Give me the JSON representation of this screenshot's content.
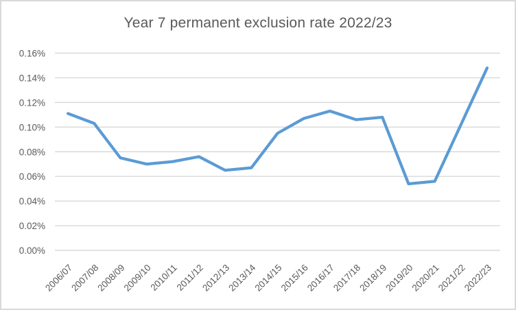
{
  "window": {
    "kind": "embedded-spreadsheet-chart"
  },
  "colors": {
    "line": "#5B9BD5",
    "gridline": "#D9D9D9",
    "axis_text": "#595959",
    "title_text": "#595959",
    "border": "#D9D9D9",
    "background": "#FFFFFF"
  },
  "chart_data": {
    "type": "line",
    "title": "Year 7 permanent exclusion rate 2022/23",
    "categories": [
      "2006/07",
      "2007/08",
      "2008/09",
      "2009/10",
      "2010/11",
      "2011/12",
      "2012/13",
      "2013/14",
      "2014/15",
      "2015/16",
      "2016/17",
      "2017/18",
      "2018/19",
      "2019/20",
      "2020/21",
      "2021/22",
      "2022/23"
    ],
    "values": [
      0.111,
      0.103,
      0.075,
      0.07,
      0.072,
      0.076,
      0.065,
      0.067,
      0.095,
      0.107,
      0.113,
      0.106,
      0.108,
      0.054,
      0.056,
      0.102,
      0.148
    ],
    "unit": "%",
    "xlabel": "",
    "ylabel": "",
    "ylim": [
      0,
      0.16
    ],
    "yticks": [
      0,
      0.02,
      0.04,
      0.06,
      0.08,
      0.1,
      0.12,
      0.14,
      0.16
    ],
    "ytick_labels": [
      "0.00%",
      "0.02%",
      "0.04%",
      "0.06%",
      "0.08%",
      "0.10%",
      "0.12%",
      "0.14%",
      "0.16%"
    ],
    "grid": "horizontal",
    "legend": "none",
    "marker": "none",
    "x_label_rotation_deg": -45
  }
}
